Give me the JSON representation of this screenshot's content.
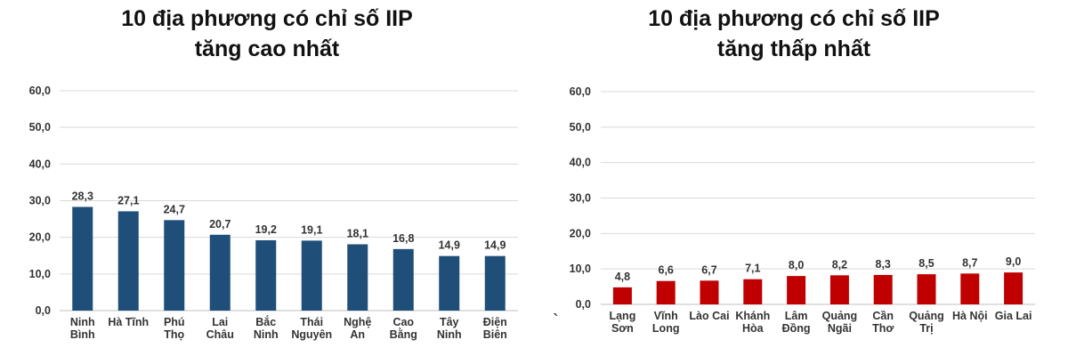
{
  "chart_data": [
    {
      "type": "bar",
      "title_lines": [
        "10 địa phương có chỉ số IIP",
        "tăng cao nhất"
      ],
      "categories": [
        [
          "Ninh",
          "Bình"
        ],
        [
          "Hà Tĩnh"
        ],
        [
          "Phú",
          "Thọ"
        ],
        [
          "Lai",
          "Châu"
        ],
        [
          "Bắc",
          "Ninh"
        ],
        [
          "Thái",
          "Nguyên"
        ],
        [
          "Nghệ",
          "An"
        ],
        [
          "Cao",
          "Bằng"
        ],
        [
          "Tây",
          "Ninh"
        ],
        [
          "Điện",
          "Biên"
        ]
      ],
      "values": [
        28.3,
        27.1,
        24.7,
        20.7,
        19.2,
        19.1,
        18.1,
        16.8,
        14.9,
        14.9
      ],
      "value_labels": [
        "28,3",
        "27,1",
        "24,7",
        "20,7",
        "19,2",
        "19,1",
        "18,1",
        "16,8",
        "14,9",
        "14,9"
      ],
      "ylim": [
        0,
        60
      ],
      "yticks": [
        0,
        10,
        20,
        30,
        40,
        50,
        60
      ],
      "ytick_labels": [
        "0,0",
        "10,0",
        "20,0",
        "30,0",
        "40,0",
        "50,0",
        "60,0"
      ],
      "bar_color": "#1f4e79",
      "grid": true,
      "legend": "none"
    },
    {
      "type": "bar",
      "title_lines": [
        "10 địa phương có chỉ số IIP",
        "tăng thấp nhất"
      ],
      "categories": [
        [
          "Lạng",
          "Sơn"
        ],
        [
          "Vĩnh",
          "Long"
        ],
        [
          "Lào Cai"
        ],
        [
          "Khánh",
          "Hòa"
        ],
        [
          "Lâm",
          "Đồng"
        ],
        [
          "Quảng",
          "Ngãi"
        ],
        [
          "Cần",
          "Thơ"
        ],
        [
          "Quảng",
          "Trị"
        ],
        [
          "Hà Nội"
        ],
        [
          "Gia Lai"
        ]
      ],
      "values": [
        4.8,
        6.6,
        6.7,
        7.1,
        8.0,
        8.2,
        8.3,
        8.5,
        8.7,
        9.0
      ],
      "value_labels": [
        "4,8",
        "6,6",
        "6,7",
        "7,1",
        "8,0",
        "8,2",
        "8,3",
        "8,5",
        "8,7",
        "9,0"
      ],
      "ylim": [
        0,
        60
      ],
      "yticks": [
        0,
        10,
        20,
        30,
        40,
        50,
        60
      ],
      "ytick_labels": [
        "0,0",
        "10,0",
        "20,0",
        "30,0",
        "40,0",
        "50,0",
        "60,0"
      ],
      "bar_color": "#c00000",
      "grid": true,
      "legend": "none"
    }
  ],
  "stray_mark": "`"
}
